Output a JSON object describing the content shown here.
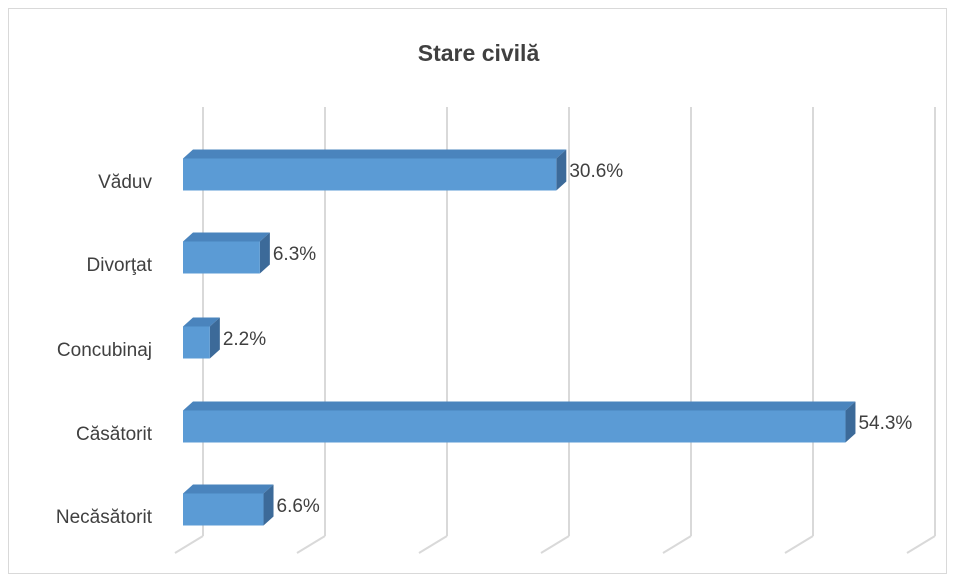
{
  "chart_data": {
    "type": "bar",
    "orientation": "horizontal",
    "style": "3d",
    "title": "Stare civilă",
    "categories": [
      "Văduv",
      "Divorţat",
      "Concubinaj",
      "Căsătorit",
      "Necăsătorit"
    ],
    "values": [
      30.6,
      6.3,
      2.2,
      54.3,
      6.6
    ],
    "value_labels": [
      "30.6%",
      "6.3%",
      "2.2%",
      "54.3%",
      "6.6%"
    ],
    "xlim": [
      0,
      60
    ],
    "grid": true,
    "legend": "none",
    "colors": {
      "bar": "#5b9bd5",
      "bar_top": "#4a84bd",
      "bar_side": "#3c6a99",
      "grid": "#d9d9d9"
    }
  }
}
